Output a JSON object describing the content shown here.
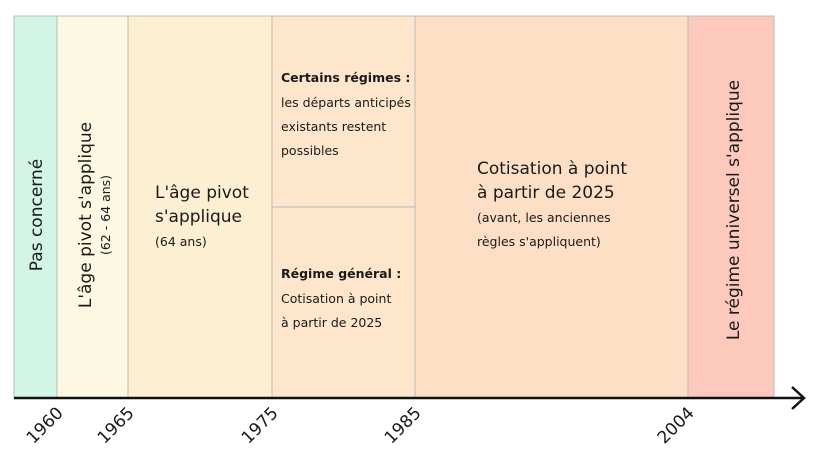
{
  "axis": {
    "ticks": [
      "1960",
      "1965",
      "1975",
      "1985",
      "2004"
    ]
  },
  "periods": [
    {
      "label": "Pas concerné"
    },
    {
      "label": "L'âge pivot s'applique",
      "note": "(62 - 64 ans)"
    },
    {
      "label": [
        "L'âge pivot",
        "s'applique"
      ],
      "note": "(64 ans)"
    },
    {
      "blocks": [
        {
          "heading": "Certains régimes :",
          "text": [
            "les départs anticipés",
            "existants restent",
            "possibles"
          ]
        },
        {
          "heading": "Régime général :",
          "text": [
            "Cotisation à point",
            "à partir de 2025"
          ]
        }
      ]
    },
    {
      "label": [
        "Cotisation à point",
        "à partir de 2025"
      ],
      "note": [
        "(avant, les anciennes",
        "règles s'appliquent)"
      ]
    },
    {
      "label": "Le régime universel s'applique"
    }
  ]
}
